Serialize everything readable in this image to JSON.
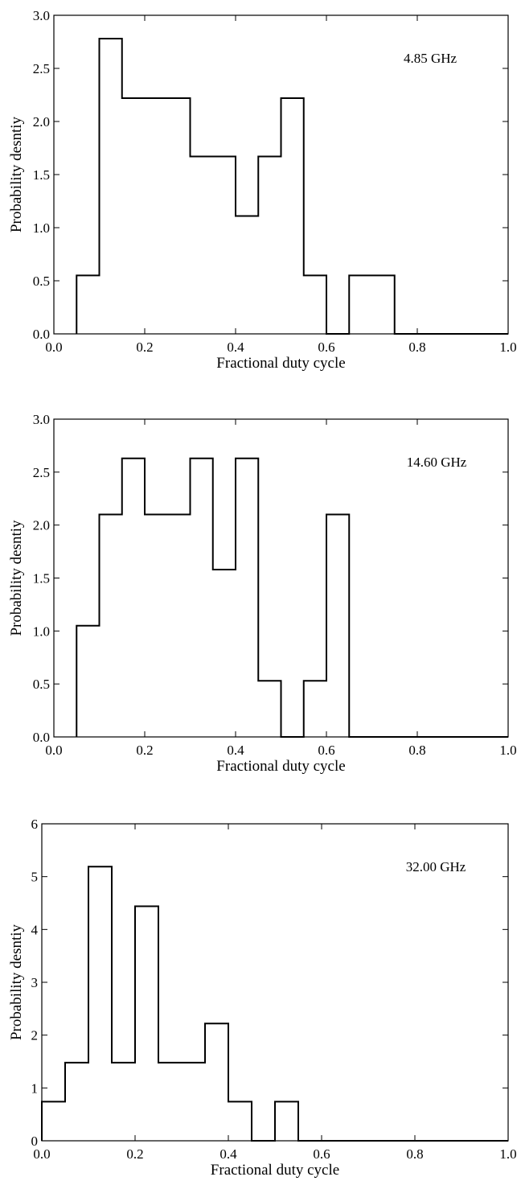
{
  "chart_data": [
    {
      "type": "bar",
      "annotation": "4.85 GHz",
      "xlabel": "Fractional duty cycle",
      "ylabel": "Probability desntiy",
      "xlim": [
        0.0,
        1.0
      ],
      "ylim": [
        0.0,
        3.0
      ],
      "xticks": [
        "0.0",
        "0.2",
        "0.4",
        "0.6",
        "0.8",
        "1.0"
      ],
      "yticks": [
        "0.0",
        "0.5",
        "1.0",
        "1.5",
        "2.0",
        "2.5",
        "3.0"
      ],
      "bin_edges": [
        0.05,
        0.1,
        0.15,
        0.2,
        0.25,
        0.3,
        0.35,
        0.4,
        0.45,
        0.5,
        0.55,
        0.6,
        0.65,
        0.7,
        0.75,
        0.8,
        0.85,
        0.9,
        0.95,
        1.0
      ],
      "values": [
        0.55,
        2.78,
        2.22,
        2.22,
        2.22,
        1.67,
        1.67,
        1.11,
        1.67,
        2.22,
        0.55,
        0.0,
        0.55,
        0.55,
        0.0,
        0.0,
        0.0,
        0.0,
        0.0
      ],
      "grid": false
    },
    {
      "type": "bar",
      "annotation": "14.60 GHz",
      "xlabel": "Fractional duty cycle",
      "ylabel": "Probability desntiy",
      "xlim": [
        0.0,
        1.0
      ],
      "ylim": [
        0.0,
        3.0
      ],
      "xticks": [
        "0.0",
        "0.2",
        "0.4",
        "0.6",
        "0.8",
        "1.0"
      ],
      "yticks": [
        "0.0",
        "0.5",
        "1.0",
        "1.5",
        "2.0",
        "2.5",
        "3.0"
      ],
      "bin_edges": [
        0.05,
        0.1,
        0.15,
        0.2,
        0.25,
        0.3,
        0.35,
        0.4,
        0.45,
        0.5,
        0.55,
        0.6,
        0.65,
        0.7,
        0.75,
        0.8,
        0.85,
        0.9,
        0.95,
        1.0
      ],
      "values": [
        1.05,
        2.1,
        2.63,
        2.1,
        2.1,
        2.63,
        1.58,
        2.63,
        0.53,
        0.0,
        0.53,
        2.1,
        0.0,
        0.0,
        0.0,
        0.0,
        0.0,
        0.0,
        0.0
      ],
      "grid": false
    },
    {
      "type": "bar",
      "annotation": "32.00 GHz",
      "xlabel": "Fractional duty cycle",
      "ylabel": "Probability desntiy",
      "xlim": [
        0.0,
        1.0
      ],
      "ylim": [
        0,
        6
      ],
      "xticks": [
        "0.0",
        "0.2",
        "0.4",
        "0.6",
        "0.8",
        "1.0"
      ],
      "yticks": [
        "0",
        "1",
        "2",
        "3",
        "4",
        "5",
        "6"
      ],
      "bin_edges": [
        0.0,
        0.05,
        0.1,
        0.15,
        0.2,
        0.25,
        0.3,
        0.35,
        0.4,
        0.45,
        0.5,
        0.55,
        0.6,
        0.65,
        0.7,
        0.75,
        0.8,
        0.85,
        0.9,
        0.95,
        1.0
      ],
      "values": [
        0.74,
        1.48,
        5.19,
        1.48,
        4.44,
        1.48,
        1.48,
        2.22,
        0.74,
        0.0,
        0.74,
        0.0,
        0.0,
        0.0,
        0.0,
        0.0,
        0.0,
        0.0,
        0.0,
        0.0
      ],
      "grid": false
    }
  ]
}
